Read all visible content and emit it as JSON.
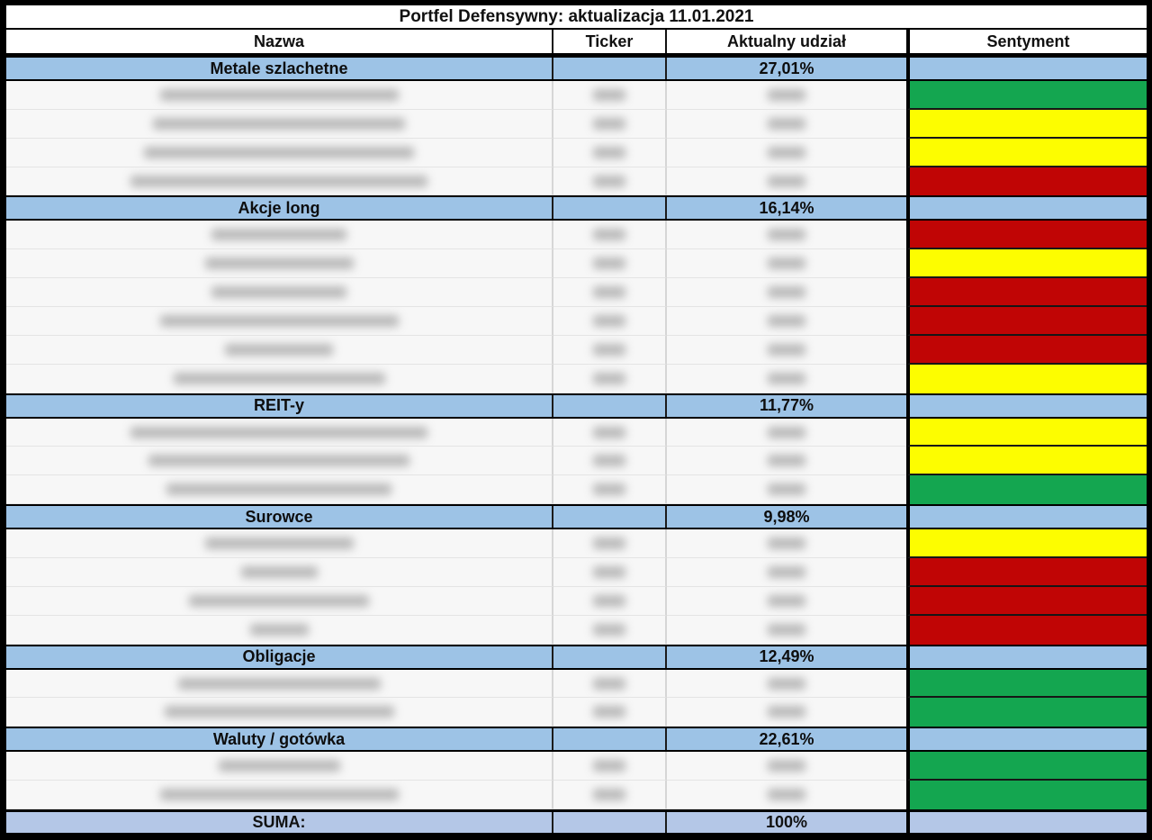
{
  "title": "Portfel Defensywny: aktualizacja 11.01.2021",
  "columns": [
    "Nazwa",
    "Ticker",
    "Aktualny udział",
    "Sentyment"
  ],
  "colors": {
    "section_band": "#9dc3e6",
    "suma_band": "#b4c7e7",
    "sentiment_green": "#14a650",
    "sentiment_yellow": "#fdfd00",
    "sentiment_red": "#c00505",
    "frame": "#000000"
  },
  "sections": [
    {
      "name": "Metale szlachetne",
      "share": "27,01%",
      "rows": [
        {
          "sentiment": "green"
        },
        {
          "sentiment": "yellow"
        },
        {
          "sentiment": "yellow"
        },
        {
          "sentiment": "red"
        }
      ]
    },
    {
      "name": "Akcje long",
      "share": "16,14%",
      "rows": [
        {
          "sentiment": "red"
        },
        {
          "sentiment": "yellow"
        },
        {
          "sentiment": "red"
        },
        {
          "sentiment": "red"
        },
        {
          "sentiment": "red"
        },
        {
          "sentiment": "yellow"
        }
      ]
    },
    {
      "name": "REIT-y",
      "share": "11,77%",
      "rows": [
        {
          "sentiment": "yellow"
        },
        {
          "sentiment": "yellow"
        },
        {
          "sentiment": "green"
        }
      ]
    },
    {
      "name": "Surowce",
      "share": "9,98%",
      "rows": [
        {
          "sentiment": "yellow"
        },
        {
          "sentiment": "red"
        },
        {
          "sentiment": "red"
        },
        {
          "sentiment": "red"
        }
      ]
    },
    {
      "name": "Obligacje",
      "share": "12,49%",
      "rows": [
        {
          "sentiment": "green"
        },
        {
          "sentiment": "green"
        }
      ]
    },
    {
      "name": "Waluty / gotówka",
      "share": "22,61%",
      "rows": [
        {
          "sentiment": "green"
        },
        {
          "sentiment": "green"
        }
      ]
    }
  ],
  "summary": {
    "label": "SUMA:",
    "value": "100%"
  }
}
